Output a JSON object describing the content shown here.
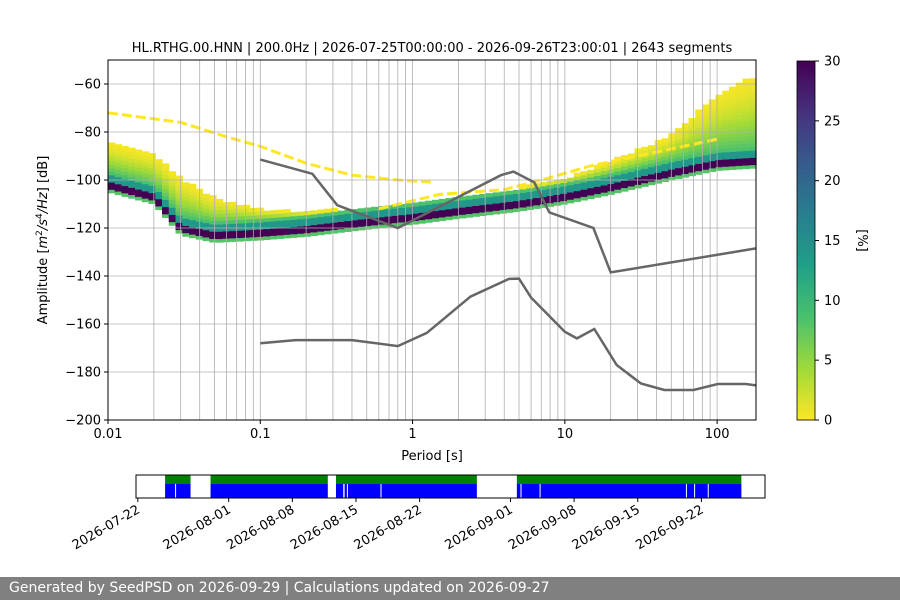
{
  "chart_data": [
    {
      "type": "heatmap",
      "title": "HL.RTHG.00.HNN | 200.0Hz | 2026-07-25T00:00:00 - 2026-09-26T23:00:01 | 2643 segments",
      "xlabel": "Period [s]",
      "ylabel_parts": [
        "Amplitude [",
        "m",
        "2",
        "/s",
        "4",
        "/Hz",
        "] [dB]"
      ],
      "x_scale": "log",
      "xlim": [
        0.01,
        180
      ],
      "ylim": [
        -200,
        -50
      ],
      "x_ticks": [
        {
          "value": 0.01,
          "label": "0.01"
        },
        {
          "value": 0.1,
          "label": "0.1"
        },
        {
          "value": 1,
          "label": "1"
        },
        {
          "value": 10,
          "label": "10"
        },
        {
          "value": 100,
          "label": "100"
        }
      ],
      "y_ticks": [
        {
          "value": -60,
          "label": "−60"
        },
        {
          "value": -80,
          "label": "−80"
        },
        {
          "value": -100,
          "label": "−100"
        },
        {
          "value": -120,
          "label": "−120"
        },
        {
          "value": -140,
          "label": "−140"
        },
        {
          "value": -160,
          "label": "−160"
        },
        {
          "value": -180,
          "label": "−180"
        },
        {
          "value": -200,
          "label": "−200"
        }
      ],
      "grid": true,
      "colorbar": {
        "label": "[%]",
        "range": [
          0,
          30
        ],
        "ticks": [
          "0",
          "5",
          "10",
          "15",
          "20",
          "25",
          "30"
        ],
        "colormap": "viridis_r",
        "colors": [
          "#fde725",
          "#a0da39",
          "#4ac16d",
          "#1fa187",
          "#277f8e",
          "#365c8d",
          "#46327e",
          "#440154"
        ]
      },
      "series": [
        {
          "style": "noise-model-line",
          "color": "#666666",
          "x": [
            0.1,
            0.22,
            0.32,
            0.8,
            3.8,
            4.6,
            6.3,
            7.9,
            15.4,
            20,
            180
          ],
          "y": [
            -91.5,
            -97.4,
            -110.5,
            -120,
            -98,
            -96.5,
            -101,
            -113.5,
            -120,
            -138.5,
            -128.5
          ]
        },
        {
          "style": "noise-model-line",
          "color": "#666666",
          "x": [
            0.1,
            0.17,
            0.4,
            0.8,
            1.24,
            2.4,
            4.3,
            5.0,
            6.0,
            10,
            12,
            15.6,
            21.9,
            31.6,
            45,
            70,
            101,
            154,
            180
          ],
          "y": [
            -168,
            -166.7,
            -166.7,
            -169.2,
            -163.7,
            -148.6,
            -141.2,
            -141.1,
            -149,
            -163.2,
            -166,
            -162.1,
            -177.1,
            -184.8,
            -187.5,
            -187.5,
            -185,
            -185,
            -185.6
          ]
        }
      ],
      "density_band": {
        "description_points_x": [
          0.01,
          0.02,
          0.03,
          0.05,
          0.1,
          0.2,
          0.5,
          1,
          2,
          5,
          10,
          20,
          50,
          100,
          180
        ],
        "mode_db": [
          -102,
          -107,
          -120,
          -123,
          -122,
          -120.5,
          -117.5,
          -115.5,
          -113,
          -110,
          -107,
          -103,
          -97,
          -93,
          -92
        ],
        "upper_db": [
          -85,
          -90,
          -100,
          -108,
          -113,
          -114,
          -112,
          -110,
          -108,
          -104,
          -100,
          -93,
          -82,
          -65,
          -57
        ]
      },
      "stray_line": {
        "x": [
          0.01,
          0.03,
          0.06,
          0.1,
          0.2,
          0.4,
          0.8,
          1.4
        ],
        "y": [
          -72,
          -76,
          -82,
          -86,
          -93,
          -98,
          -100,
          -101
        ]
      },
      "stray_line2": {
        "x": [
          0.6,
          1.5,
          4,
          8,
          15,
          30,
          60,
          100
        ],
        "y": [
          -112,
          -106,
          -104,
          -99,
          -94,
          -90,
          -86,
          -83
        ]
      }
    },
    {
      "type": "timeline",
      "x_tick_labels": [
        "2026-07-22",
        "2026-08-01",
        "2026-08-08",
        "2026-08-15",
        "2026-08-22",
        "2026-09-01",
        "2026-09-08",
        "2026-09-15",
        "2026-09-22"
      ],
      "x_tick_days": [
        0,
        10,
        17,
        24,
        31,
        41,
        48,
        55,
        62
      ],
      "xlim_days": [
        -0.2,
        69
      ],
      "green_segments_days": [
        [
          3,
          5.8
        ],
        [
          8,
          20.9
        ],
        [
          21.8,
          37.3
        ],
        [
          41.7,
          66.4
        ]
      ],
      "blue_segments_days": [
        [
          3,
          5.8
        ],
        [
          8,
          20.9
        ],
        [
          21.8,
          37.3
        ],
        [
          41.7,
          66.4
        ]
      ],
      "blue_gaps_days": [
        [
          4.1,
          4.15
        ],
        [
          22.6,
          22.75
        ],
        [
          23.0,
          23.05
        ],
        [
          26.7,
          26.75
        ],
        [
          42.1,
          42.15
        ],
        [
          44.2,
          44.25
        ],
        [
          60.3,
          60.35
        ],
        [
          61.2,
          61.25
        ],
        [
          62.7,
          62.8
        ]
      ],
      "green_color": "#008000",
      "blue_color": "#0000ff"
    }
  ],
  "footer": {
    "text": "Generated by SeedPSD on 2026-09-29 | Calculations updated on 2026-09-27"
  }
}
